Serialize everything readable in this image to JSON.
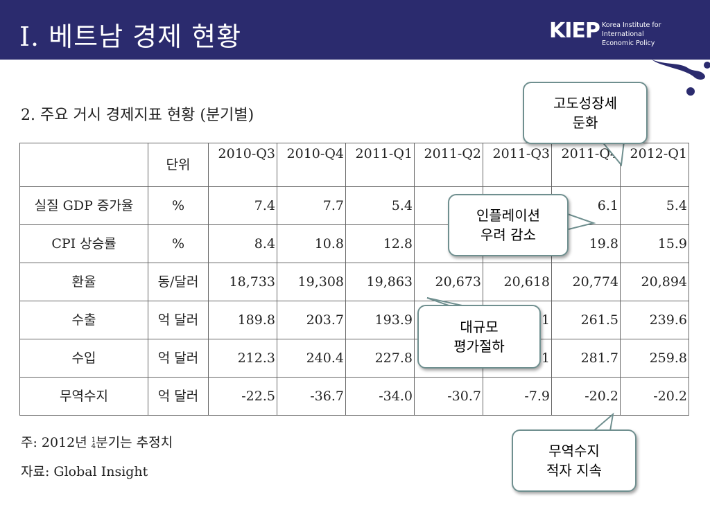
{
  "header": {
    "title": "I. 베트남 경제 현황",
    "logo_mark": "KIEP",
    "logo_line1": "Korea Institute for International",
    "logo_line2": "Economic Policy",
    "bg_color": "#2b2b6e"
  },
  "subtitle": "2. 주요 거시 경제지표 현황 (분기별)",
  "table": {
    "headers": [
      "",
      "단위",
      "2010-Q3",
      "2010-Q4",
      "2011-Q1",
      "2011-Q2",
      "2011-Q3",
      "2011-Q4",
      "2012-Q1"
    ],
    "rows": [
      {
        "label": "실질 GDP 증가율",
        "unit": "%",
        "values": [
          "7.4",
          "7.7",
          "5.4",
          "",
          "",
          "6.1",
          "5.4"
        ]
      },
      {
        "label": "CPI 상승률",
        "unit": "%",
        "values": [
          "8.4",
          "10.8",
          "12.8",
          "",
          "",
          "19.8",
          "15.9"
        ]
      },
      {
        "label": "환율",
        "unit": "동/달러",
        "values": [
          "18,733",
          "19,308",
          "19,863",
          "20,673",
          "20,618",
          "20,774",
          "20,894"
        ]
      },
      {
        "label": "수출",
        "unit": "억 달러",
        "values": [
          "189.8",
          "203.7",
          "193.9",
          "",
          ".1",
          "261.5",
          "239.6"
        ]
      },
      {
        "label": "수입",
        "unit": "억 달러",
        "values": [
          "212.3",
          "240.4",
          "227.8",
          "",
          ".1",
          "281.7",
          "259.8"
        ]
      },
      {
        "label": "무역수지",
        "unit": "억 달러",
        "values": [
          "-22.5",
          "-36.7",
          "-34.0",
          "-30.7",
          "-7.9",
          "-20.2",
          "-20.2"
        ]
      }
    ]
  },
  "notes": {
    "note1_prefix": "주: 2012년 ",
    "note1_frac_top": "1",
    "note1_frac_bottom": "4",
    "note1_suffix": "분기는 추정치",
    "source": "자료: Global Insight"
  },
  "callouts": {
    "growth": [
      "고도성장세",
      "둔화"
    ],
    "inflation": [
      "인플레이션",
      "우려 감소"
    ],
    "devaluation": [
      "대규모",
      "평가절하"
    ],
    "trade": [
      "무역수지",
      "적자 지속"
    ]
  }
}
